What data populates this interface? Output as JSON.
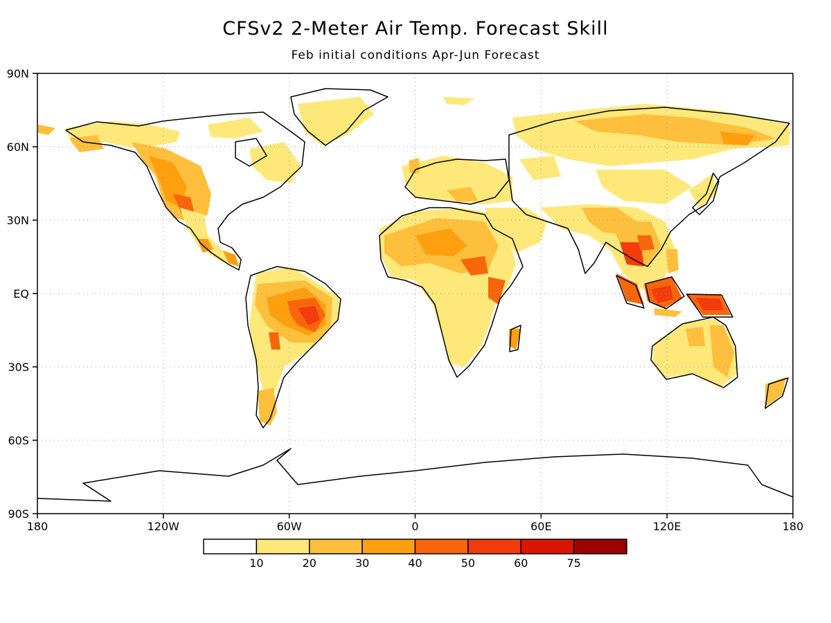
{
  "title": "CFSv2 2-Meter Air Temp. Forecast Skill",
  "subtitle": "Feb initial conditions  Apr-Jun Forecast",
  "map": {
    "lat_ticks": [
      "90N",
      "60N",
      "30N",
      "EQ",
      "30S",
      "60S",
      "90S"
    ],
    "lon_ticks": [
      "180",
      "120W",
      "60W",
      "0",
      "60E",
      "120E",
      "180"
    ],
    "lat_range": [
      -90,
      90
    ],
    "lon_range": [
      -180,
      180
    ],
    "grid": "dotted"
  },
  "colorbar": {
    "labels": [
      "10",
      "20",
      "30",
      "40",
      "50",
      "60",
      "75"
    ],
    "colors": [
      "#ffffff",
      "#fee87a",
      "#fdbf3c",
      "#fd9f0f",
      "#f8660b",
      "#f23c0c",
      "#db1503",
      "#9c0303"
    ]
  }
}
